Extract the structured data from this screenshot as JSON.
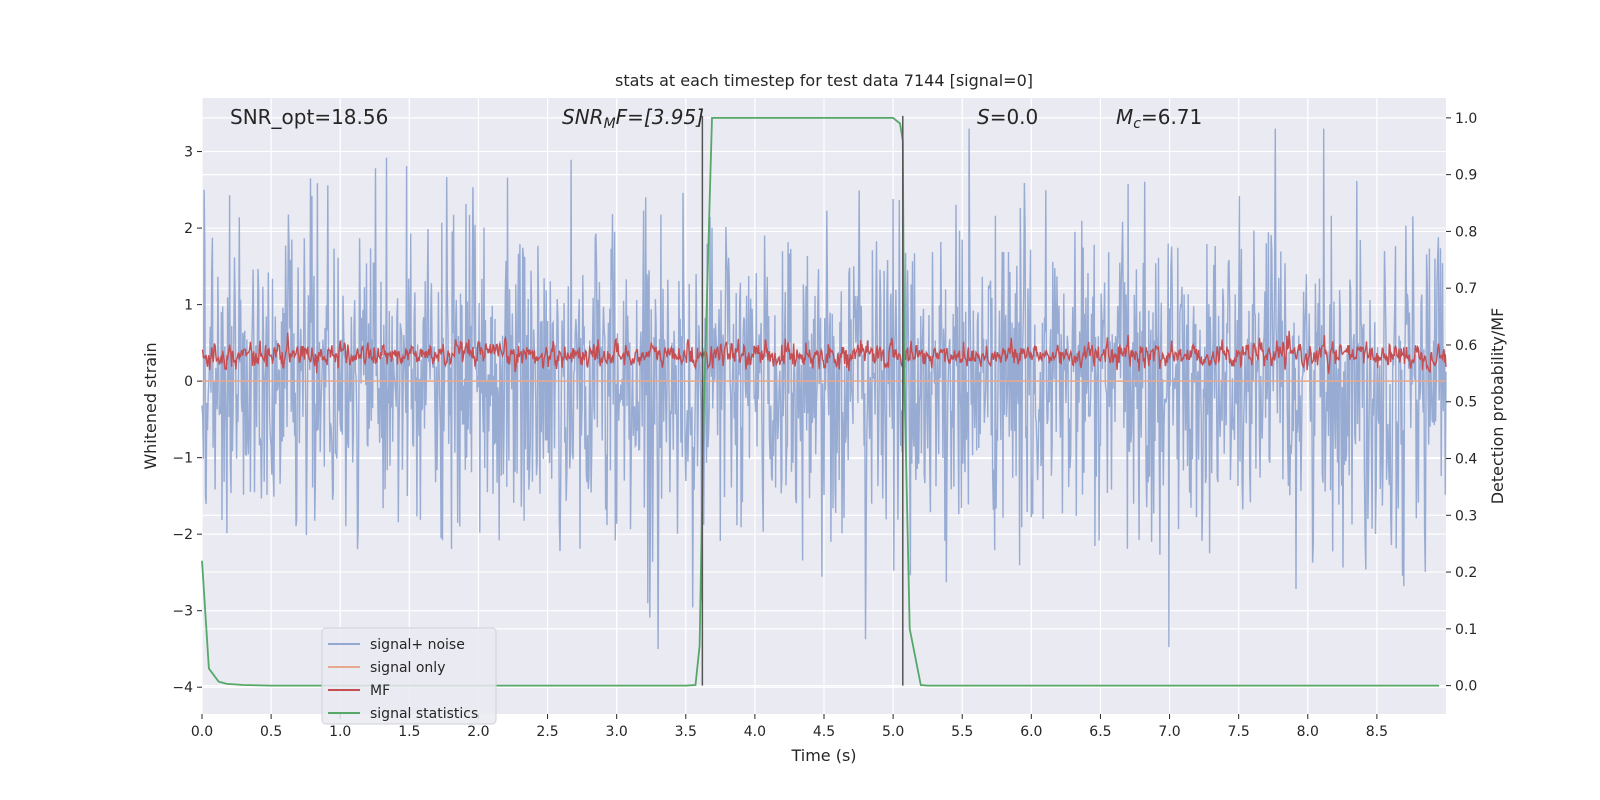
{
  "chart_data": {
    "type": "line",
    "title": "stats at each timestep for test data 7144 [signal=0]",
    "xlabel": "Time (s)",
    "ylabel_left": "Whitened strain",
    "ylabel_right": "Detection probability/MF",
    "xlim": [
      0.0,
      9.0
    ],
    "ylim_left": [
      -4.35,
      3.7
    ],
    "ylim_right": [
      -0.05,
      1.035
    ],
    "x_ticks": [
      "0.0",
      "0.5",
      "1.0",
      "1.5",
      "2.0",
      "2.5",
      "3.0",
      "3.5",
      "4.0",
      "4.5",
      "5.0",
      "5.5",
      "6.0",
      "6.5",
      "7.0",
      "7.5",
      "8.0",
      "8.5"
    ],
    "y_left_ticks": [
      "3",
      "2",
      "1",
      "0",
      "−1",
      "−2",
      "−3",
      "−4"
    ],
    "y_right_ticks": [
      "1.0",
      "0.9",
      "0.8",
      "0.7",
      "0.6",
      "0.5",
      "0.4",
      "0.3",
      "0.2",
      "0.1",
      "0.0"
    ],
    "annotations": {
      "snr_opt": "SNR_opt=18.56",
      "snr_mf_base": "SNR",
      "snr_mf_sub": "M",
      "snr_mf_rest": "F=[3.95]",
      "s_italic": "S",
      "s_rest": "=0.0",
      "mc_base": "M",
      "mc_sub": "c",
      "mc_rest": "=6.71"
    },
    "vertical_markers": [
      3.62,
      5.07
    ],
    "series": [
      {
        "name": "signal+ noise",
        "color": "#92a8d1",
        "style": "noise",
        "amplitude": 1.9,
        "axis": "left"
      },
      {
        "name": "signal only",
        "color": "#e8a88c",
        "values_constant": 0.0,
        "axis": "left"
      },
      {
        "name": "MF",
        "color": "#c44e52",
        "style": "noise",
        "center": 0.34,
        "amplitude": 0.22,
        "axis": "left"
      },
      {
        "name": "signal statistics",
        "color": "#55a868",
        "axis": "right",
        "x": [
          0.0,
          0.05,
          0.12,
          0.18,
          0.3,
          0.5,
          3.5,
          3.57,
          3.6,
          3.63,
          3.69,
          5.0,
          5.05,
          5.07,
          5.08,
          5.12,
          5.2,
          5.25,
          8.95
        ],
        "y": [
          0.22,
          0.03,
          0.007,
          0.003,
          0.001,
          0.0,
          0.0,
          0.001,
          0.07,
          0.48,
          1.0,
          1.0,
          0.99,
          0.96,
          0.55,
          0.1,
          0.001,
          0.0,
          0.0
        ]
      }
    ],
    "legend_placement": "lower-left",
    "grid": true
  },
  "colors": {
    "plot_bg": "#eaeaf2",
    "grid": "#ffffff",
    "marker_line": "#555555"
  }
}
